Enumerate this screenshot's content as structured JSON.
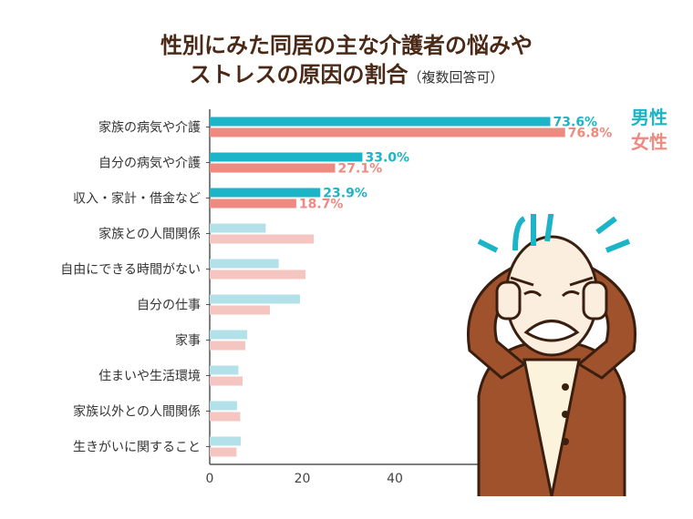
{
  "chart_data": {
    "type": "bar",
    "orientation": "horizontal",
    "title_line1": "性別にみた同居の主な介護者の悩みや",
    "title_line2": "ストレスの原因の割合",
    "title_note": "（複数回答可）",
    "xlabel": "(%)",
    "xlim": [
      0,
      80
    ],
    "xticks": [
      "0",
      "20",
      "40",
      "60",
      "80"
    ],
    "categories": [
      "家族の病気や介護",
      "自分の病気や介護",
      "収入・家計・借金など",
      "家族との人間関係",
      "自由にできる時間がない",
      "自分の仕事",
      "家事",
      "住まいや生活環境",
      "家族以外との人間関係",
      "生きがいに関すること"
    ],
    "series": [
      {
        "name": "男性",
        "color": "#1cb5c7",
        "faded_color": "#b3e1ea",
        "values": [
          73.6,
          33.0,
          23.9,
          12.1,
          14.9,
          19.5,
          8.1,
          6.2,
          5.9,
          6.7
        ],
        "labels": [
          "73.6%",
          "33.0%",
          "23.9%"
        ]
      },
      {
        "name": "女性",
        "color": "#ee8a80",
        "faded_color": "#f5c5c1",
        "values": [
          76.8,
          27.1,
          18.7,
          22.5,
          20.7,
          13.0,
          7.7,
          7.1,
          6.6,
          5.8
        ],
        "labels": [
          "76.8%",
          "27.1%",
          "18.7%"
        ]
      }
    ],
    "highlighted_count": 3,
    "legend_placement": "top-right"
  }
}
